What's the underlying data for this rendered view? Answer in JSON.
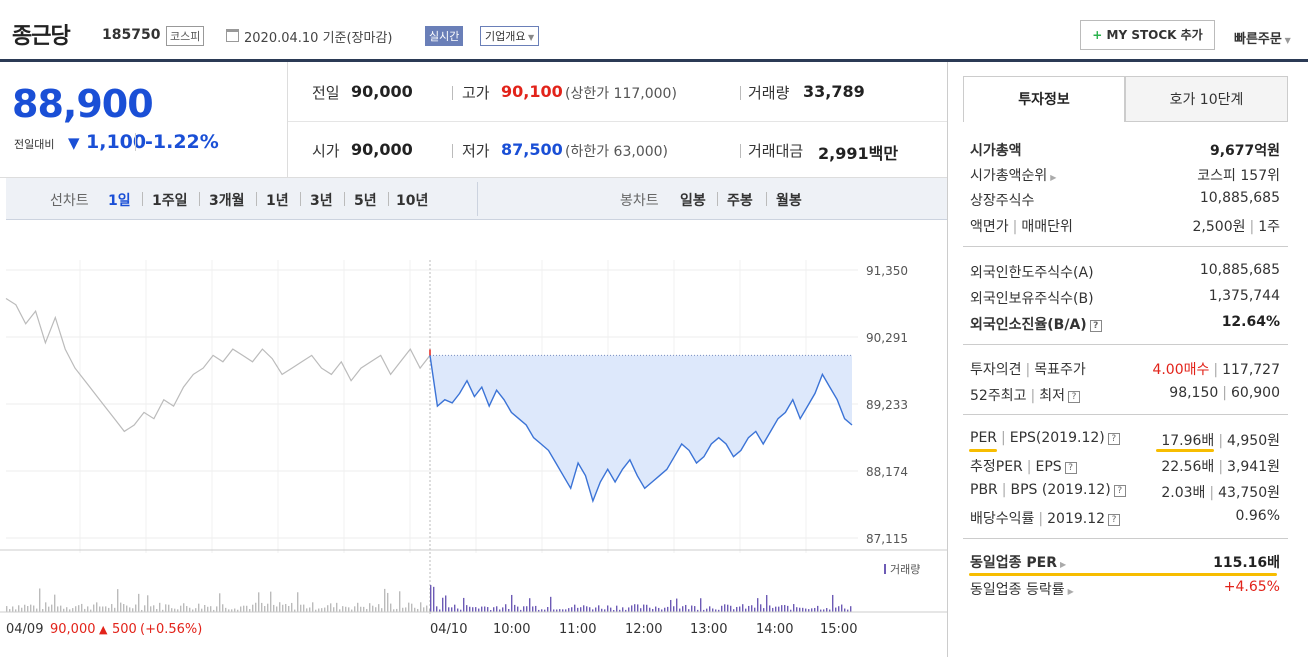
{
  "header": {
    "stock_name": "종근당",
    "stock_code": "185750",
    "market": "코스피",
    "date_text": "2020.04.10 기준(장마감)",
    "live_badge": "실시간",
    "corp_badge": "기업개요",
    "mystock_label": "MY STOCK 추가",
    "quick_order": "빠른주문"
  },
  "summary": {
    "current_price": "88,900",
    "change_label": "전일대비",
    "change_amount": "1,100",
    "change_percent": "-1.22%",
    "prev_close_label": "전일",
    "prev_close": "90,000",
    "high_label": "고가",
    "high": "90,100",
    "upper_limit": "(상한가 117,000)",
    "volume_label": "거래량",
    "volume": "33,789",
    "open_label": "시가",
    "open": "90,000",
    "low_label": "저가",
    "low": "87,500",
    "lower_limit": "(하한가 63,000)",
    "value_label": "거래대금",
    "value": "2,991",
    "value_unit": "백만"
  },
  "tabs": {
    "line_label": "선차트",
    "line_periods": [
      "1일",
      "1주일",
      "3개월",
      "1년",
      "3년",
      "5년",
      "10년"
    ],
    "candle_label": "봉차트",
    "candle_periods": [
      "일봉",
      "주봉",
      "월봉"
    ]
  },
  "chart_data": {
    "type": "line",
    "title": "",
    "y_ticks": [
      "91,350",
      "90,291",
      "89,233",
      "88,174",
      "87,115"
    ],
    "ylim": [
      87115,
      91350
    ],
    "prev_close": 90000,
    "x_ticks": [
      "04/09",
      "04/10",
      "10:00",
      "11:00",
      "12:00",
      "13:00",
      "14:00",
      "15:00"
    ],
    "prev_day_footer": {
      "date": "04/09",
      "close": "90,000",
      "change": "500",
      "change_pct": "(+0.56%)"
    },
    "volume_label": "거래량",
    "series": [
      {
        "name": "04/09",
        "color": "#bbbbbb",
        "values": [
          90900,
          90800,
          90500,
          90700,
          90200,
          90600,
          90100,
          89800,
          89600,
          89400,
          89200,
          89000,
          88800,
          88900,
          89100,
          89000,
          89300,
          89200,
          89500,
          89700,
          89800,
          90000,
          89900,
          90100,
          90000,
          89900,
          90100,
          89950,
          89700,
          89800,
          89900,
          90000,
          89800,
          89700,
          89900,
          89600,
          89800,
          89900,
          90000,
          89700,
          89900,
          90100,
          89800,
          90000
        ]
      },
      {
        "name": "04/10",
        "color": "#3b73d6",
        "values": [
          90000,
          89200,
          89300,
          89250,
          89400,
          89600,
          89350,
          89500,
          89200,
          89450,
          89300,
          89100,
          89000,
          88900,
          88700,
          88600,
          88500,
          88300,
          88100,
          87900,
          88300,
          88100,
          87700,
          88000,
          88200,
          88000,
          88200,
          88350,
          88100,
          87900,
          88000,
          88100,
          88200,
          88400,
          88600,
          88500,
          88300,
          88400,
          88600,
          88700,
          88600,
          88400,
          88500,
          88700,
          88800,
          88600,
          88800,
          89000,
          89100,
          89300,
          89000,
          89200,
          89400,
          89700,
          89500,
          89300,
          89000,
          88900
        ]
      }
    ]
  },
  "right_panel": {
    "tab_invest": "투자정보",
    "tab_quote": "호가 10단계",
    "group1": [
      {
        "label": "시가총액",
        "value": "9,677억원"
      },
      {
        "label": "시가총액순위",
        "value": "코스피 157위"
      },
      {
        "label": "상장주식수",
        "value": "10,885,685"
      },
      {
        "label": "액면가",
        "label2": "매매단위",
        "value": "2,500원",
        "value2": "1주"
      }
    ],
    "group2": [
      {
        "label": "외국인한도주식수(A)",
        "value": "10,885,685"
      },
      {
        "label": "외국인보유주식수(B)",
        "value": "1,375,744"
      },
      {
        "label": "외국인소진율(B/A)",
        "value": "12.64%"
      }
    ],
    "group3": [
      {
        "label": "투자의견",
        "label2": "목표주가",
        "value": "4.00매수",
        "value2": "117,727"
      },
      {
        "label": "52주최고",
        "label2": "최저",
        "value": "98,150",
        "value2": "60,900"
      }
    ],
    "group4": [
      {
        "label": "PER",
        "label2": "EPS(2019.12)",
        "value": "17.96배",
        "value2": "4,950원"
      },
      {
        "label": "추정PER",
        "label2": "EPS",
        "value": "22.56배",
        "value2": "3,941원"
      },
      {
        "label": "PBR",
        "label2": "BPS (2019.12)",
        "value": "2.03배",
        "value2": "43,750원"
      },
      {
        "label": "배당수익률",
        "label2": "2019.12",
        "value": "0.96%"
      }
    ],
    "group5": [
      {
        "label": "동일업종 PER",
        "value": "115.16배"
      },
      {
        "label": "동일업종 등락률",
        "value": "+4.65%"
      }
    ]
  }
}
